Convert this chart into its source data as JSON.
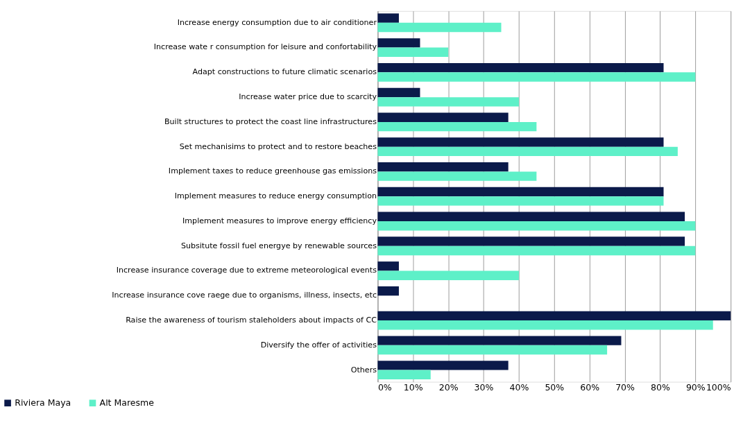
{
  "chart_data": {
    "type": "bar",
    "orientation": "horizontal",
    "categories": [
      "Increase energy consumption due to air conditioner",
      "Increase wate r consumption for leisure and confortability",
      "Adapt constructions to future climatic scenarios",
      "Increase  water price due to scarcity",
      "Built structures to protect the coast line infrastructures",
      "Set mechanisims to protect and to restore beaches",
      "Implement taxes to reduce greenhouse gas emissions",
      "Implement measures to reduce energy consumption",
      "Implement measures to improve energy efficiency",
      "Subsitute fossil fuel energye by renewable sources",
      "Increase insurance coverage due to extreme meteorological events",
      "Increase insurance cove raege due to organisms, illness, insects, etc",
      "Raise the awareness of tourism staleholders about impacts of CC",
      "Diversify the offer of activities",
      "Others"
    ],
    "series": [
      {
        "name": "Riviera Maya",
        "color": "#0b1a4a",
        "values": [
          6,
          12,
          81,
          12,
          37,
          81,
          37,
          81,
          87,
          87,
          6,
          6,
          100,
          69,
          37
        ]
      },
      {
        "name": "Alt Maresme",
        "color": "#5ef0c8",
        "values": [
          35,
          20,
          90,
          40,
          45,
          85,
          45,
          81,
          90,
          90,
          40,
          null,
          95,
          65,
          15
        ]
      }
    ],
    "xlim": [
      0,
      100
    ],
    "xticks": [
      {
        "value": 0,
        "label": "0%"
      },
      {
        "value": 10,
        "label": "10%"
      },
      {
        "value": 20,
        "label": "20%"
      },
      {
        "value": 30,
        "label": "30%"
      },
      {
        "value": 40,
        "label": "40%"
      },
      {
        "value": 50,
        "label": "50%"
      },
      {
        "value": 60,
        "label": "60%"
      },
      {
        "value": 70,
        "label": "70%"
      },
      {
        "value": 80,
        "label": "80%"
      },
      {
        "value": 90,
        "label": "90%"
      },
      {
        "value": 100,
        "label": "100%"
      }
    ],
    "grid": "x",
    "legend": "bottom left"
  }
}
